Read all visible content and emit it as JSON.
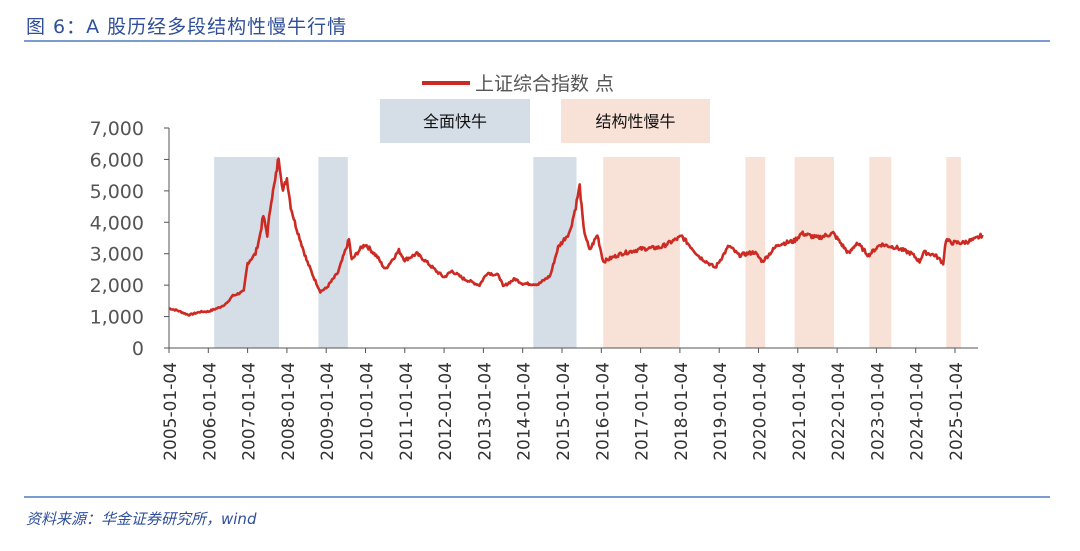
{
  "title": "图 6：A 股历经多段结构性慢牛行情",
  "source": "资料来源：华金证券研究所，wind",
  "chart_data": {
    "type": "line",
    "legend": "上证综合指数 点",
    "legend_placement": "top-center",
    "color": "#cc2a22",
    "ylim": [
      0,
      7000
    ],
    "yticks": [
      "0",
      "1,000",
      "2,000",
      "3,000",
      "4,000",
      "5,000",
      "6,000",
      "7,000"
    ],
    "xticks": [
      "2005-01-04",
      "2006-01-04",
      "2007-01-04",
      "2008-01-04",
      "2009-01-04",
      "2010-01-04",
      "2011-01-04",
      "2012-01-04",
      "2013-01-04",
      "2014-01-04",
      "2015-01-04",
      "2016-01-04",
      "2017-01-04",
      "2018-01-04",
      "2019-01-04",
      "2020-01-04",
      "2021-01-04",
      "2022-01-04",
      "2023-01-04",
      "2024-01-04",
      "2025-01-04"
    ],
    "grid": false,
    "annotations": [
      {
        "label": "全面快牛",
        "color": "#d5dee6",
        "periods": [
          [
            2006.15,
            2007.8
          ],
          [
            2008.8,
            2009.55
          ],
          [
            2014.27,
            2015.37
          ]
        ]
      },
      {
        "label": "结构性慢牛",
        "color": "#f8e1d6",
        "periods": [
          [
            2016.05,
            2018.0
          ],
          [
            2019.67,
            2020.17
          ],
          [
            2020.92,
            2021.92
          ],
          [
            2022.82,
            2023.38
          ],
          [
            2024.78,
            2025.15
          ]
        ]
      }
    ],
    "series": [
      {
        "name": "上证综合指数 点",
        "x": [
          2005.0,
          2005.2,
          2005.5,
          2005.8,
          2006.0,
          2006.3,
          2006.5,
          2006.6,
          2006.9,
          2007.0,
          2007.2,
          2007.3,
          2007.4,
          2007.5,
          2007.6,
          2007.7,
          2007.79,
          2007.9,
          2008.0,
          2008.1,
          2008.2,
          2008.4,
          2008.5,
          2008.7,
          2008.85,
          2009.0,
          2009.3,
          2009.58,
          2009.65,
          2009.9,
          2010.0,
          2010.3,
          2010.5,
          2010.85,
          2011.0,
          2011.3,
          2011.5,
          2011.8,
          2012.0,
          2012.2,
          2012.5,
          2012.9,
          2013.1,
          2013.4,
          2013.5,
          2013.8,
          2014.0,
          2014.4,
          2014.7,
          2014.9,
          2015.2,
          2015.35,
          2015.45,
          2015.55,
          2015.7,
          2015.9,
          2016.05,
          2016.5,
          2017.0,
          2017.5,
          2018.05,
          2018.5,
          2018.9,
          2019.25,
          2019.5,
          2019.9,
          2020.1,
          2020.5,
          2020.9,
          2021.1,
          2021.5,
          2021.9,
          2022.3,
          2022.5,
          2022.8,
          2023.1,
          2023.5,
          2023.9,
          2024.1,
          2024.2,
          2024.5,
          2024.7,
          2024.77,
          2024.9,
          2025.2,
          2025.5,
          2025.7
        ],
        "values": [
          1260,
          1200,
          1050,
          1150,
          1160,
          1300,
          1450,
          1650,
          1800,
          2700,
          3000,
          3500,
          4200,
          3600,
          4700,
          5300,
          6100,
          5000,
          5400,
          4500,
          4000,
          3200,
          2800,
          2200,
          1800,
          1900,
          2400,
          3450,
          2800,
          3200,
          3300,
          2900,
          2500,
          3100,
          2800,
          3000,
          2800,
          2450,
          2250,
          2450,
          2200,
          2000,
          2400,
          2300,
          1950,
          2200,
          2050,
          2030,
          2300,
          3200,
          3700,
          4500,
          5150,
          3800,
          3100,
          3600,
          2750,
          3000,
          3150,
          3200,
          3550,
          2900,
          2550,
          3250,
          2950,
          3050,
          2750,
          3300,
          3400,
          3650,
          3500,
          3650,
          3000,
          3350,
          2950,
          3300,
          3200,
          3000,
          2750,
          3050,
          2950,
          2700,
          3450,
          3350,
          3350,
          3450,
          3600
        ]
      }
    ]
  }
}
